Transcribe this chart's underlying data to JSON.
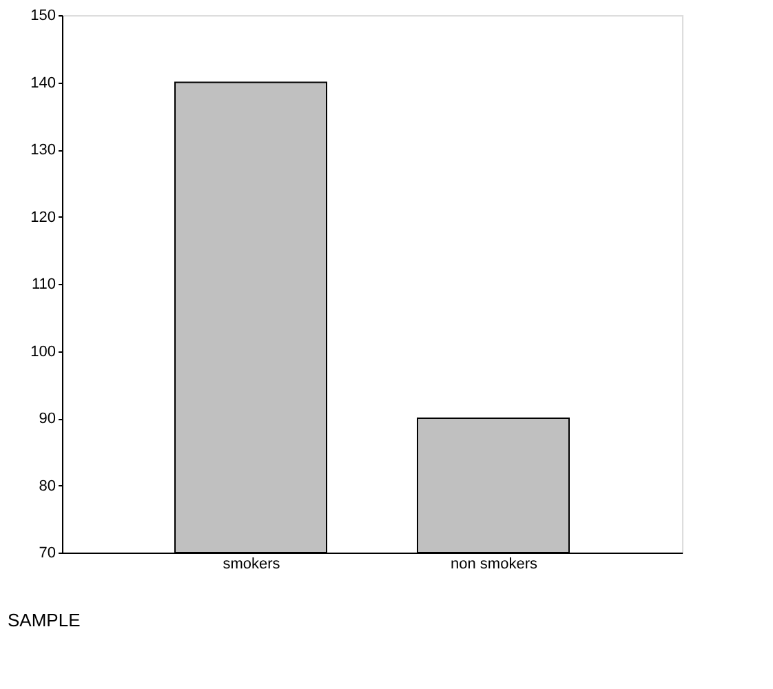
{
  "chart_data": {
    "type": "bar",
    "xlabel": "SAMPLE",
    "categories": [
      "smokers",
      "non smokers"
    ],
    "values": [
      140,
      90
    ],
    "color": "#c0c0c0",
    "ylim": [
      70,
      150
    ],
    "yticks": [
      70,
      80,
      90,
      100,
      110,
      120,
      130,
      140,
      150
    ],
    "grid": false
  }
}
